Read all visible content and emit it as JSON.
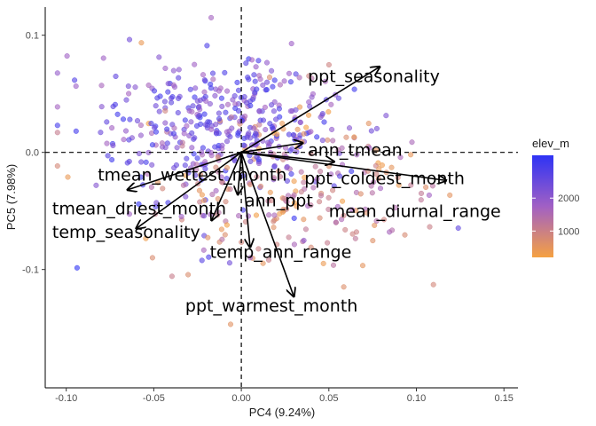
{
  "chart_data": {
    "type": "scatter",
    "xlabel": "PC4 (9.24%)",
    "ylabel": "PC5 (7.98%)",
    "xlim": [
      -0.112,
      0.158
    ],
    "ylim": [
      -0.201,
      0.124
    ],
    "x_ticks": [
      -0.1,
      -0.05,
      0.0,
      0.05,
      0.1,
      0.15
    ],
    "x_tick_labels": [
      "-0.10",
      "-0.05",
      "0.00",
      "0.05",
      "0.10",
      "0.15"
    ],
    "y_ticks": [
      0.1,
      0.0,
      -0.1
    ],
    "y_tick_labels": [
      "0.1",
      "0.0",
      "-0.1"
    ],
    "reference_lines": {
      "x": 0.0,
      "y": 0.0,
      "style": "dashed"
    },
    "grid": false,
    "color_scale": {
      "title": "elev_m",
      "low_color": "#F5A142",
      "mid_color": "#A160C4",
      "high_color": "#2E33F5",
      "range": [
        200,
        3300
      ],
      "ticks": [
        1000,
        2000
      ],
      "tick_labels": [
        "1000",
        "2000"
      ]
    },
    "legend_position": "right",
    "point_count": 620,
    "vectors": [
      {
        "label": "ppt_seasonality",
        "x": 0.079,
        "y": 0.073
      },
      {
        "label": "ann_tmean",
        "x": 0.035,
        "y": 0.008
      },
      {
        "label": "ppt_coldest_month",
        "x": 0.053,
        "y": -0.008
      },
      {
        "label": "mean_diurnal_range",
        "x": 0.117,
        "y": -0.024
      },
      {
        "label": "ann_ppt",
        "x": -0.002,
        "y": -0.036
      },
      {
        "label": "ppt_warmest_month",
        "x": 0.03,
        "y": -0.123
      },
      {
        "label": "temp_ann_range",
        "x": 0.005,
        "y": -0.081
      },
      {
        "label": "temp_seasonality",
        "x": -0.06,
        "y": -0.065
      },
      {
        "label": "tmean_driest_month",
        "x": -0.017,
        "y": -0.058
      },
      {
        "label": "tmean_wettest_month",
        "x": -0.065,
        "y": -0.032
      }
    ],
    "vector_labels": [
      {
        "text": "ppt_seasonality",
        "x": 0.038,
        "y": 0.06
      },
      {
        "text": "ann_tmean",
        "x": 0.038,
        "y": -0.003
      },
      {
        "text": "ppt_coldest_month",
        "x": 0.036,
        "y": -0.027
      },
      {
        "text": "mean_diurnal_range",
        "x": 0.05,
        "y": -0.055
      },
      {
        "text": "ann_ppt",
        "x": 0.002,
        "y": -0.046
      },
      {
        "text": "ppt_warmest_month",
        "x": -0.032,
        "y": -0.136
      },
      {
        "text": "temp_ann_range",
        "x": -0.018,
        "y": -0.09
      },
      {
        "text": "temp_seasonality",
        "x": -0.108,
        "y": -0.073
      },
      {
        "text": "tmean_driest_month",
        "x": -0.108,
        "y": -0.053
      },
      {
        "text": "tmean_wettest_month",
        "x": -0.082,
        "y": -0.024
      }
    ]
  }
}
